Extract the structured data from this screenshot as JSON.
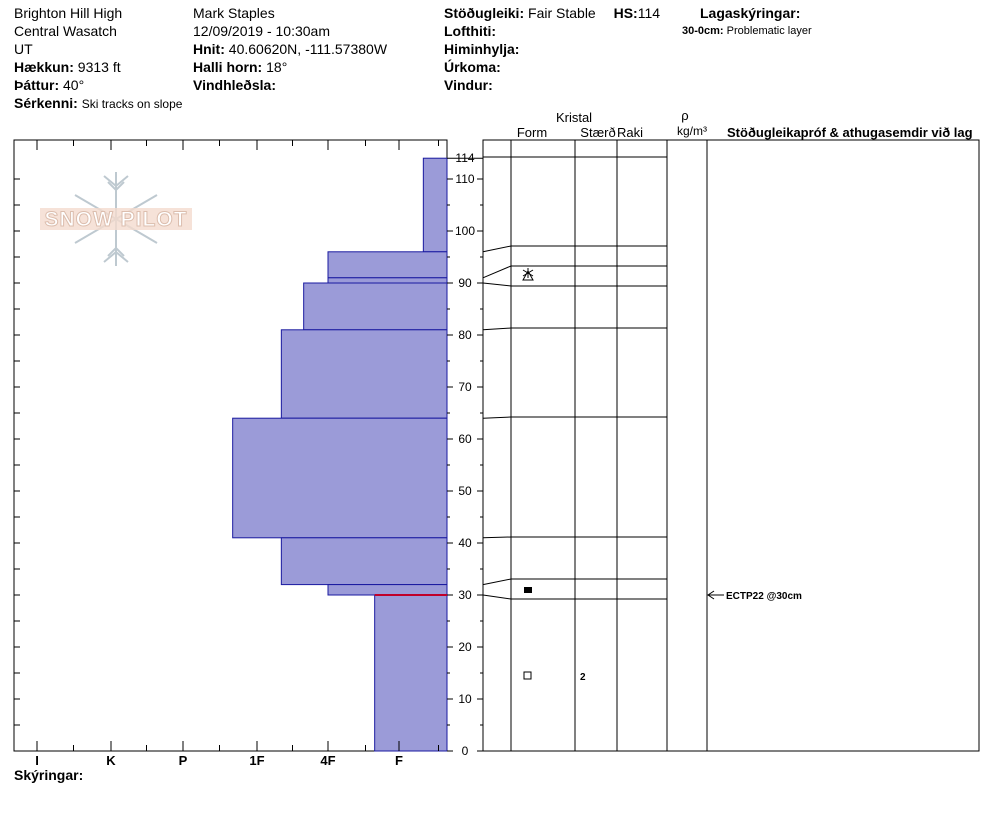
{
  "header": {
    "location": [
      "Brighton Hill High",
      "Central Wasatch",
      "UT"
    ],
    "elevation_label": "Hækkun:",
    "elevation_value": "9313 ft",
    "aspect_label": "Þáttur:",
    "aspect_value": "40°",
    "features_label": "Sérkenni:",
    "features_value": "Ski tracks on slope",
    "observer": "Mark Staples",
    "datetime": "12/09/2019 - 10:30am",
    "coords_label": "Hnit:",
    "coords_value": "40.60620N, -111.57380W",
    "slope_label": "Halli horn:",
    "slope_value": "18°",
    "wind_loading_label": "Vindhleðsla:",
    "stability_label": "Stöðugleiki:",
    "stability_value": "Fair Stable",
    "hs_label": "HS:",
    "hs_value": "114",
    "air_temp_label": "Lofthiti:",
    "sky_label": "Himinhylja:",
    "precip_label": "Úrkoma:",
    "wind_label": "Vindur:",
    "layer_notes_label": "Lagaskýringar:",
    "layer_note_depth": "30-0cm:",
    "layer_note_text": "Problematic layer"
  },
  "logo_text": "SNOW PILOT",
  "hardness_axis": [
    "I",
    "K",
    "P",
    "1F",
    "4F",
    "F"
  ],
  "depth_ticks": [
    "0",
    "10",
    "20",
    "30",
    "40",
    "50",
    "60",
    "70",
    "80",
    "90",
    "100",
    "110",
    "114"
  ],
  "columns": {
    "crystal": "Kristal",
    "form": "Form",
    "size": "Stærð",
    "moisture": "Raki",
    "density_symbol": "ρ",
    "density_unit": "kg/m³",
    "tests": "Stöðugleikapróf & athugasemdir við lag"
  },
  "test_result": "ECTP22 @30cm",
  "size_value": "2",
  "notes_label": "Skýringar:",
  "colors": {
    "layer_fill": "#9b9bd8",
    "layer_stroke": "#1a1aa0",
    "weak_layer": "#c0002a"
  },
  "chart_data": {
    "type": "bar",
    "title": "",
    "xlabel": "",
    "ylabel": "",
    "depth_range_cm": [
      0,
      114
    ],
    "hardness_scale": [
      "I",
      "K",
      "P",
      "1F",
      "4F",
      "F"
    ],
    "layers": [
      {
        "top": 114,
        "bottom": 96,
        "hardness": "F-"
      },
      {
        "top": 96,
        "bottom": 91,
        "hardness": "4F"
      },
      {
        "top": 91,
        "bottom": 90,
        "hardness": "4F"
      },
      {
        "top": 90,
        "bottom": 81,
        "hardness": "4F+"
      },
      {
        "top": 81,
        "bottom": 64,
        "hardness": "1F-"
      },
      {
        "top": 64,
        "bottom": 41,
        "hardness": "1F+"
      },
      {
        "top": 41,
        "bottom": 32,
        "hardness": "1F-"
      },
      {
        "top": 32,
        "bottom": 30,
        "hardness": "4F"
      },
      {
        "top": 30,
        "bottom": 0,
        "hardness": "F+"
      }
    ],
    "layer_depths_cm": [
      114,
      96,
      91,
      90,
      81,
      64,
      41,
      32,
      30,
      0
    ],
    "weak_layer_cm": 30,
    "crystal_forms": [
      {
        "depth": 92,
        "form": "surface hoar / facets"
      },
      {
        "depth": 31,
        "form": "rounding facets"
      },
      {
        "depth": 15,
        "form": "rounded grains",
        "size": "2"
      }
    ],
    "stability_tests": [
      {
        "depth": 30,
        "result": "ECTP22 @30cm"
      }
    ]
  }
}
